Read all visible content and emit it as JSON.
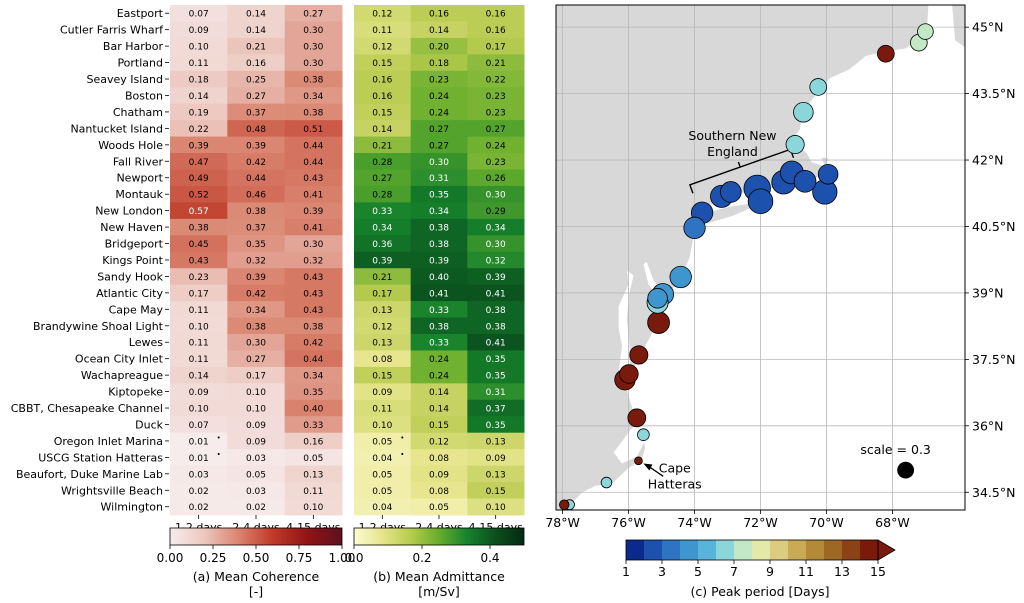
{
  "stations": [
    "Eastport",
    "Cutler Farris Wharf",
    "Bar Harbor",
    "Portland",
    "Seavey Island",
    "Boston",
    "Chatham",
    "Nantucket Island",
    "Woods Hole",
    "Fall River",
    "Newport",
    "Montauk",
    "New London",
    "New Haven",
    "Bridgeport",
    "Kings Point",
    "Sandy Hook",
    "Atlantic City",
    "Cape May",
    "Brandywine Shoal Light",
    "Lewes",
    "Ocean City Inlet",
    "Wachapreague",
    "Kiptopeke",
    "CBBT, Chesapeake Channel",
    "Duck",
    "Oregon Inlet Marina",
    "USCG Station Hatteras",
    "Beaufort, Duke Marine Lab",
    "Wrightsville Beach",
    "Wilmington"
  ],
  "bands": [
    "1-2 days",
    "2-4 days",
    "4-15 days"
  ],
  "chart_data": [
    {
      "type": "heatmap",
      "title": "",
      "colorbar_label": "(a) Mean Coherence\n[-]",
      "colorbar_ticks": [
        "0.00",
        "0.25",
        "0.50",
        "0.75",
        "1.00"
      ],
      "range": [
        0,
        1
      ],
      "colorscale": [
        "#f7eeee",
        "#ecc7bf",
        "#d9836e",
        "#bf3a28",
        "#8f1416",
        "#5e0f20"
      ],
      "values": [
        [
          "0.07",
          "0.14",
          "0.27"
        ],
        [
          "0.09",
          "0.14",
          "0.30"
        ],
        [
          "0.10",
          "0.21",
          "0.30"
        ],
        [
          "0.11",
          "0.16",
          "0.30"
        ],
        [
          "0.18",
          "0.25",
          "0.38"
        ],
        [
          "0.14",
          "0.27",
          "0.34"
        ],
        [
          "0.19",
          "0.37",
          "0.38"
        ],
        [
          "0.22",
          "0.48",
          "0.51"
        ],
        [
          "0.39",
          "0.39",
          "0.44"
        ],
        [
          "0.47",
          "0.42",
          "0.44"
        ],
        [
          "0.49",
          "0.44",
          "0.43"
        ],
        [
          "0.52",
          "0.46",
          "0.41"
        ],
        [
          "0.57",
          "0.38",
          "0.39"
        ],
        [
          "0.38",
          "0.37",
          "0.41"
        ],
        [
          "0.45",
          "0.35",
          "0.30"
        ],
        [
          "0.43",
          "0.32",
          "0.32"
        ],
        [
          "0.23",
          "0.39",
          "0.43"
        ],
        [
          "0.17",
          "0.42",
          "0.43"
        ],
        [
          "0.11",
          "0.34",
          "0.43"
        ],
        [
          "0.10",
          "0.38",
          "0.38"
        ],
        [
          "0.11",
          "0.30",
          "0.42"
        ],
        [
          "0.11",
          "0.27",
          "0.44"
        ],
        [
          "0.14",
          "0.17",
          "0.34"
        ],
        [
          "0.09",
          "0.10",
          "0.35"
        ],
        [
          "0.10",
          "0.10",
          "0.40"
        ],
        [
          "0.07",
          "0.09",
          "0.33"
        ],
        [
          "0.01",
          "0.09",
          "0.16"
        ],
        [
          "0.01",
          "0.03",
          "0.05"
        ],
        [
          "0.03",
          "0.05",
          "0.13"
        ],
        [
          "0.02",
          "0.03",
          "0.11"
        ],
        [
          "0.02",
          "0.02",
          "0.10"
        ]
      ],
      "marks": [
        [
          26,
          0,
          "•"
        ],
        [
          27,
          0,
          "•"
        ]
      ]
    },
    {
      "type": "heatmap",
      "title": "",
      "colorbar_label": "(b) Mean Admittance\n[m/Sv]",
      "colorbar_ticks": [
        "0.0",
        "0.2",
        "0.4"
      ],
      "tick_values": [
        0.0,
        0.2,
        0.4
      ],
      "range": [
        0,
        0.5
      ],
      "colorscale": [
        "#fefbd2",
        "#e6e58c",
        "#b7cb4f",
        "#66ad2c",
        "#16822c",
        "#0a4f1e",
        "#062a12"
      ],
      "values": [
        [
          "0.12",
          "0.16",
          "0.16"
        ],
        [
          "0.11",
          "0.14",
          "0.16"
        ],
        [
          "0.12",
          "0.20",
          "0.17"
        ],
        [
          "0.15",
          "0.18",
          "0.21"
        ],
        [
          "0.16",
          "0.23",
          "0.22"
        ],
        [
          "0.16",
          "0.24",
          "0.23"
        ],
        [
          "0.15",
          "0.24",
          "0.23"
        ],
        [
          "0.14",
          "0.27",
          "0.27"
        ],
        [
          "0.21",
          "0.27",
          "0.24"
        ],
        [
          "0.28",
          "0.30",
          "0.23"
        ],
        [
          "0.27",
          "0.31",
          "0.26"
        ],
        [
          "0.28",
          "0.35",
          "0.30"
        ],
        [
          "0.33",
          "0.34",
          "0.29"
        ],
        [
          "0.34",
          "0.38",
          "0.34"
        ],
        [
          "0.36",
          "0.38",
          "0.30"
        ],
        [
          "0.39",
          "0.39",
          "0.32"
        ],
        [
          "0.21",
          "0.40",
          "0.39"
        ],
        [
          "0.17",
          "0.41",
          "0.41"
        ],
        [
          "0.13",
          "0.33",
          "0.38"
        ],
        [
          "0.12",
          "0.38",
          "0.38"
        ],
        [
          "0.13",
          "0.33",
          "0.41"
        ],
        [
          "0.08",
          "0.24",
          "0.35"
        ],
        [
          "0.15",
          "0.24",
          "0.35"
        ],
        [
          "0.09",
          "0.14",
          "0.31"
        ],
        [
          "0.11",
          "0.14",
          "0.37"
        ],
        [
          "0.10",
          "0.15",
          "0.35"
        ],
        [
          "0.05",
          "0.12",
          "0.13"
        ],
        [
          "0.04",
          "0.08",
          "0.09"
        ],
        [
          "0.05",
          "0.09",
          "0.13"
        ],
        [
          "0.05",
          "0.08",
          "0.15"
        ],
        [
          "0.04",
          "0.05",
          "0.10"
        ]
      ],
      "marks": [
        [
          26,
          0,
          "•"
        ],
        [
          27,
          0,
          "•"
        ]
      ]
    },
    {
      "type": "scatter",
      "title": "",
      "xlabel_ticks": [
        "78°W",
        "76°W",
        "74°W",
        "72°W",
        "70°W",
        "68°W"
      ],
      "x_tick_values": [
        -78,
        -76,
        -74,
        -72,
        -70,
        -68
      ],
      "ylabel_ticks": [
        "34.5°N",
        "36°N",
        "37.5°N",
        "39°N",
        "40.5°N",
        "42°N",
        "43.5°N",
        "45°N"
      ],
      "y_tick_values": [
        34.5,
        36,
        37.5,
        39,
        40.5,
        42,
        43.5,
        45
      ],
      "xlim": [
        -78.2,
        -65.8
      ],
      "ylim": [
        34.1,
        45.5
      ],
      "annotation_sne": "Southern New\nEngland",
      "annotation_hatteras": "Cape\nHatteras",
      "scale_label": "scale = 0.3",
      "colorbar_label": "(c) Peak period [Days]",
      "colorbar_ticks": [
        "1",
        "3",
        "5",
        "7",
        "9",
        "11",
        "13",
        "15"
      ],
      "period_range": [
        1,
        15
      ],
      "period_colors": [
        "#0a2a8c",
        "#1c52ad",
        "#2f74c2",
        "#3f96cf",
        "#58b5d9",
        "#8bd6da",
        "#c2e8c6",
        "#e3e9a8",
        "#dccc80",
        "#c9ab55",
        "#b38a3a",
        "#9d6724",
        "#8a4216",
        "#7a1a0c"
      ],
      "points": [
        {
          "lon": -67.0,
          "lat": 44.9,
          "coherence": 0.27,
          "period": 7
        },
        {
          "lon": -67.2,
          "lat": 44.65,
          "coherence": 0.3,
          "period": 7
        },
        {
          "lon": -68.2,
          "lat": 44.4,
          "coherence": 0.3,
          "period": 15
        },
        {
          "lon": -70.25,
          "lat": 43.65,
          "coherence": 0.3,
          "period": 6.5
        },
        {
          "lon": -70.7,
          "lat": 43.08,
          "coherence": 0.38,
          "period": 6.5
        },
        {
          "lon": -70.95,
          "lat": 42.35,
          "coherence": 0.34,
          "period": 6.5
        },
        {
          "lon": -69.95,
          "lat": 41.68,
          "coherence": 0.38,
          "period": 2.5
        },
        {
          "lon": -70.05,
          "lat": 41.28,
          "coherence": 0.51,
          "period": 2.5
        },
        {
          "lon": -70.65,
          "lat": 41.52,
          "coherence": 0.44,
          "period": 2
        },
        {
          "lon": -71.05,
          "lat": 41.72,
          "coherence": 0.47,
          "period": 2
        },
        {
          "lon": -71.3,
          "lat": 41.5,
          "coherence": 0.49,
          "period": 2
        },
        {
          "lon": -72.0,
          "lat": 41.07,
          "coherence": 0.52,
          "period": 2
        },
        {
          "lon": -72.1,
          "lat": 41.36,
          "coherence": 0.57,
          "period": 2
        },
        {
          "lon": -72.9,
          "lat": 41.28,
          "coherence": 0.41,
          "period": 2
        },
        {
          "lon": -73.18,
          "lat": 41.18,
          "coherence": 0.45,
          "period": 2
        },
        {
          "lon": -73.77,
          "lat": 40.81,
          "coherence": 0.43,
          "period": 2
        },
        {
          "lon": -74.0,
          "lat": 40.47,
          "coherence": 0.43,
          "period": 3
        },
        {
          "lon": -74.42,
          "lat": 39.36,
          "coherence": 0.43,
          "period": 4
        },
        {
          "lon": -74.96,
          "lat": 38.97,
          "coherence": 0.43,
          "period": 4
        },
        {
          "lon": -75.12,
          "lat": 38.88,
          "coherence": 0.38,
          "period": 4
        },
        {
          "lon": -75.12,
          "lat": 38.78,
          "coherence": 0.42,
          "period": 6
        },
        {
          "lon": -75.09,
          "lat": 38.33,
          "coherence": 0.44,
          "period": 15
        },
        {
          "lon": -75.69,
          "lat": 37.6,
          "coherence": 0.34,
          "period": 15
        },
        {
          "lon": -75.99,
          "lat": 37.17,
          "coherence": 0.35,
          "period": 15
        },
        {
          "lon": -76.11,
          "lat": 37.04,
          "coherence": 0.4,
          "period": 15
        },
        {
          "lon": -75.75,
          "lat": 36.18,
          "coherence": 0.33,
          "period": 15
        },
        {
          "lon": -75.55,
          "lat": 35.8,
          "coherence": 0.16,
          "period": 6
        },
        {
          "lon": -75.7,
          "lat": 35.21,
          "coherence": 0.05,
          "period": 15
        },
        {
          "lon": -76.67,
          "lat": 34.72,
          "coherence": 0.13,
          "period": 6.5
        },
        {
          "lon": -77.79,
          "lat": 34.22,
          "coherence": 0.11,
          "period": 6.5
        },
        {
          "lon": -77.95,
          "lat": 34.22,
          "coherence": 0.1,
          "period": 15
        }
      ]
    }
  ]
}
